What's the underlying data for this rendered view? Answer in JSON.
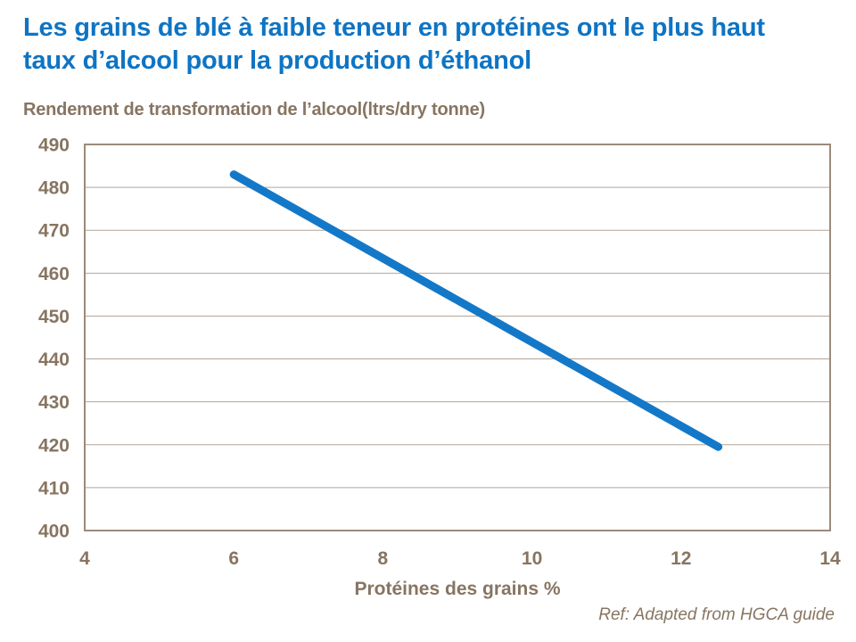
{
  "header": {
    "title": "Les grains de blé à faible teneur en protéines ont le plus haut taux d’alcool pour la production d’éthanol"
  },
  "chart_data": {
    "type": "line",
    "title": "Rendement de transformation de l’alcool(ltrs/dry tonne)",
    "xlabel": "Protéines des grains %",
    "ylabel": "",
    "xlim": [
      4,
      14
    ],
    "ylim": [
      400,
      490
    ],
    "xticks": [
      4,
      6,
      8,
      10,
      12,
      14
    ],
    "yticks": [
      400,
      410,
      420,
      430,
      440,
      450,
      460,
      470,
      480,
      490
    ],
    "grid": "horizontal",
    "legend": "none",
    "series": [
      {
        "color": "#1478C8",
        "points": [
          [
            6,
            483
          ],
          [
            12.5,
            419.5
          ]
        ]
      }
    ]
  },
  "footer": {
    "ref": "Ref: Adapted from HGCA guide"
  },
  "colors": {
    "title": "#0E74C4",
    "text": "#877561",
    "grid": "#B2A597",
    "border": "#9A8B7B",
    "background": "#FFFFFF"
  }
}
